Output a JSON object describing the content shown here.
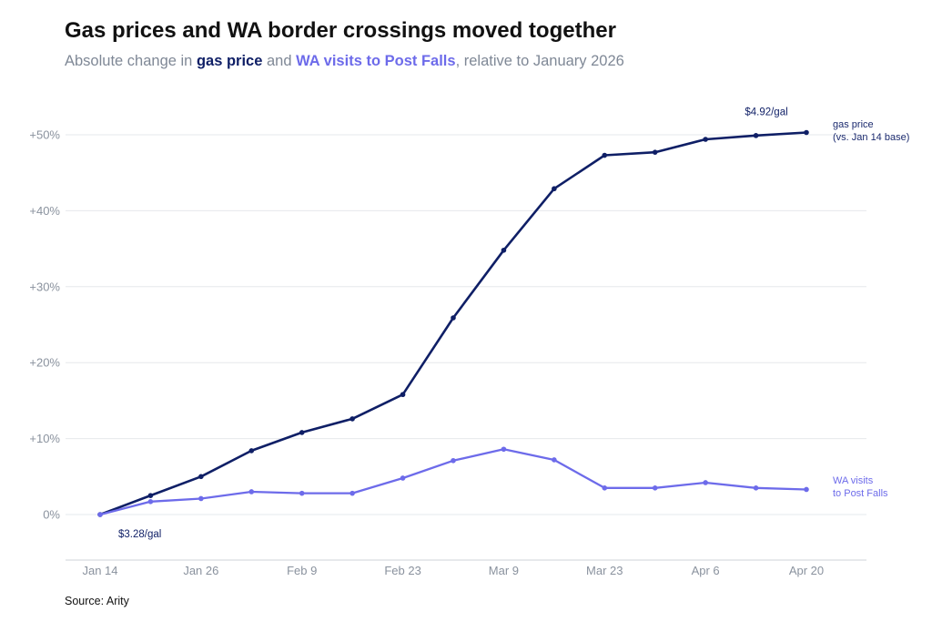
{
  "chart_data": {
    "type": "line",
    "title": "Gas prices and WA border crossings moved together",
    "subtitle": {
      "prefix": "Absolute change in ",
      "gas": "gas price",
      "middle": " and ",
      "wa": "WA visits to Post Falls",
      "suffix": ", relative to January 2026"
    },
    "source": "Source: Arity",
    "x_ticks": [
      {
        "label": "Jan 14",
        "index": 0
      },
      {
        "label": "Jan 26",
        "index": 2
      },
      {
        "label": "Feb 9",
        "index": 4
      },
      {
        "label": "Feb 23",
        "index": 6
      },
      {
        "label": "Mar 9",
        "index": 8
      },
      {
        "label": "Mar 23",
        "index": 10
      },
      {
        "label": "Apr 6",
        "index": 12
      },
      {
        "label": "Apr 20",
        "index": 14
      }
    ],
    "y_ticks": [
      {
        "label": "0%",
        "value": 0
      },
      {
        "label": "+10%",
        "value": 10
      },
      {
        "label": "+20%",
        "value": 20
      },
      {
        "label": "+30%",
        "value": 30
      },
      {
        "label": "+40%",
        "value": 40
      },
      {
        "label": "+50%",
        "value": 50
      }
    ],
    "ylim": [
      -6,
      53
    ],
    "series": [
      {
        "id": "gas",
        "label_lines": [
          "gas price",
          "(vs. Jan 14 base)"
        ],
        "color": "#0f1f66",
        "values": [
          0,
          2.5,
          5.0,
          8.4,
          10.8,
          12.6,
          15.8,
          25.9,
          34.8,
          42.9,
          47.3,
          47.7,
          49.4,
          49.9,
          50.3
        ]
      },
      {
        "id": "wa",
        "label_lines": [
          "WA visits",
          "to Post Falls"
        ],
        "color": "#6d6bea",
        "values": [
          0,
          1.7,
          2.1,
          3.0,
          2.8,
          2.8,
          4.8,
          7.1,
          8.6,
          7.2,
          3.5,
          3.5,
          4.2,
          3.5,
          3.3
        ]
      }
    ],
    "annotations": [
      {
        "text": "$3.28/gal",
        "series": "gas",
        "index": 0
      },
      {
        "text": "$4.92/gal",
        "series": "gas",
        "index": 14
      }
    ]
  }
}
